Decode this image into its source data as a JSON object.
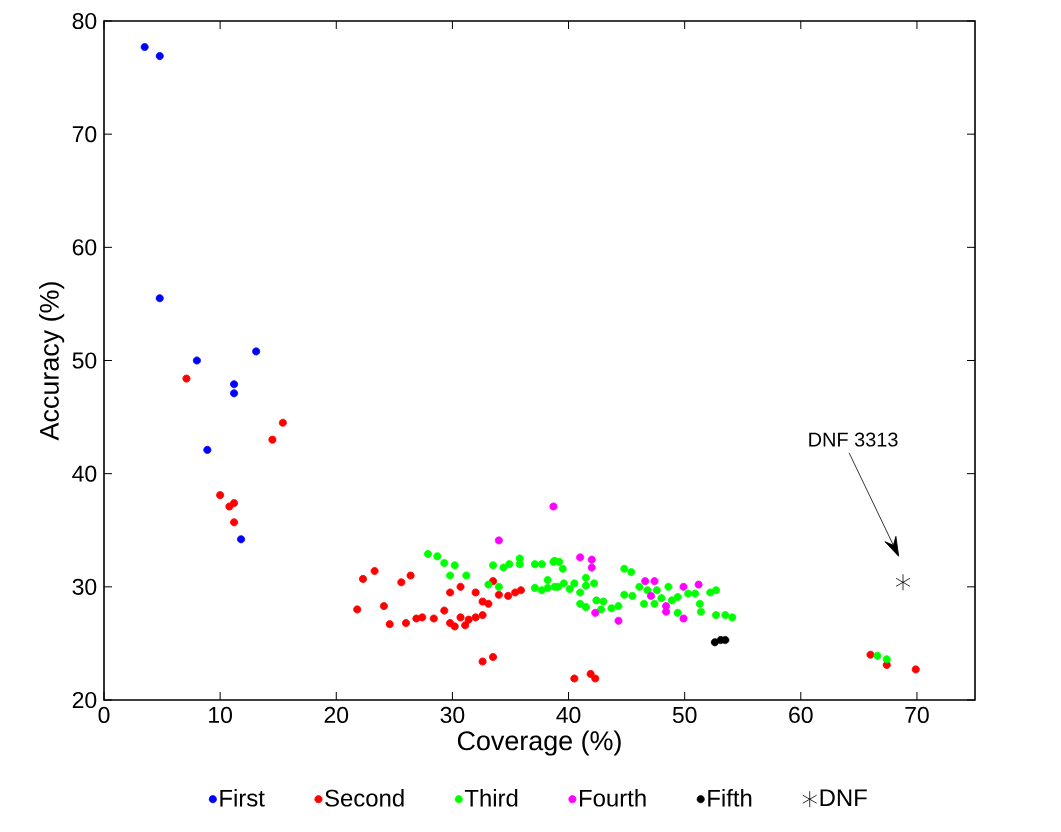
{
  "chart_data": {
    "type": "scatter",
    "xlabel": "Coverage (%)",
    "ylabel": "Accuracy (%)",
    "xlim": [
      0,
      75
    ],
    "ylim": [
      20,
      80
    ],
    "xticks": [
      0,
      10,
      20,
      30,
      40,
      50,
      60,
      70
    ],
    "yticks": [
      20,
      30,
      40,
      50,
      60,
      70,
      80
    ],
    "grid": false,
    "legend": "bottom",
    "marker": "circle",
    "annotations": [
      "DNF 3313"
    ],
    "series": [
      {
        "name": "First",
        "color": "#0000ff",
        "x": [
          3.5,
          4.8,
          4.8,
          8.0,
          13.1,
          11.2,
          11.2,
          8.9,
          11.8
        ],
        "values": [
          77.7,
          76.9,
          55.5,
          50.0,
          50.8,
          47.9,
          47.1,
          42.1,
          34.2
        ]
      },
      {
        "name": "Second",
        "color": "#ff0000",
        "x": [
          7.1,
          14.5,
          15.4,
          10.0,
          10.8,
          11.2,
          11.2,
          22.3,
          23.3,
          21.8,
          24.1,
          24.6,
          25.6,
          26.4,
          26.0,
          26.9,
          27.4,
          28.4,
          29.3,
          29.8,
          30.7,
          29.8,
          30.2,
          30.7,
          31.1,
          31.4,
          32.0,
          32.6,
          32.0,
          32.6,
          33.1,
          33.5,
          34.0,
          34.8,
          35.4,
          35.9,
          32.6,
          33.5,
          40.5,
          41.9,
          42.3,
          66.0,
          67.4,
          69.9
        ],
        "values": [
          48.4,
          43.0,
          44.5,
          38.1,
          37.1,
          37.4,
          35.7,
          30.7,
          31.4,
          28.0,
          28.3,
          26.7,
          30.4,
          31.0,
          26.8,
          27.2,
          27.3,
          27.2,
          27.9,
          29.5,
          30.0,
          26.8,
          26.5,
          27.3,
          26.6,
          27.1,
          27.3,
          27.5,
          29.5,
          28.7,
          28.5,
          30.5,
          29.3,
          29.2,
          29.5,
          29.7,
          23.4,
          23.8,
          21.9,
          22.3,
          21.9,
          24.0,
          23.1,
          22.7
        ]
      },
      {
        "name": "Third",
        "color": "#00ff00",
        "x": [
          27.9,
          28.7,
          29.3,
          29.8,
          30.2,
          31.2,
          33.1,
          34.0,
          33.5,
          34.4,
          34.9,
          35.8,
          35.8,
          37.1,
          37.7,
          38.7,
          37.1,
          37.7,
          38.2,
          38.8,
          38.8,
          39.2,
          39.5,
          38.2,
          39.1,
          39.6,
          40.5,
          40.1,
          41.5,
          41.5,
          42.2,
          41.0,
          41.0,
          41.5,
          42.4,
          43.0,
          42.8,
          43.7,
          44.3,
          44.8,
          45.4,
          44.8,
          45.5,
          46.1,
          46.5,
          46.8,
          47.6,
          47.4,
          48.0,
          48.6,
          48.9,
          49.4,
          50.3,
          50.9,
          49.4,
          51.3,
          51.4,
          52.2,
          52.7,
          52.7,
          53.5,
          54.1,
          66.6,
          67.4
        ],
        "values": [
          32.9,
          32.7,
          32.1,
          31.0,
          31.9,
          31.0,
          30.2,
          30.0,
          31.9,
          31.7,
          32.0,
          32.5,
          32.0,
          32.0,
          32.0,
          32.2,
          29.9,
          29.7,
          30.6,
          30.0,
          32.3,
          32.2,
          31.6,
          29.9,
          30.0,
          30.3,
          30.3,
          29.8,
          30.8,
          30.1,
          30.3,
          29.5,
          28.5,
          28.2,
          28.8,
          28.7,
          28.0,
          28.1,
          28.3,
          31.6,
          31.3,
          29.3,
          29.2,
          30.0,
          28.5,
          29.7,
          29.7,
          28.5,
          29.0,
          30.0,
          28.8,
          29.1,
          29.4,
          29.4,
          27.7,
          28.5,
          27.8,
          29.5,
          29.7,
          27.5,
          27.5,
          27.3,
          23.9,
          23.6
        ]
      },
      {
        "name": "Fourth",
        "color": "#ff00ff",
        "x": [
          38.7,
          34.0,
          41.0,
          42.0,
          42.0,
          42.3,
          44.3,
          46.6,
          47.4,
          47.1,
          48.4,
          48.4,
          49.9,
          49.9,
          51.2
        ],
        "values": [
          37.1,
          34.1,
          32.6,
          32.4,
          31.7,
          27.7,
          27.0,
          30.5,
          30.5,
          29.2,
          28.3,
          27.8,
          30.0,
          27.2,
          30.2
        ]
      },
      {
        "name": "Fifth",
        "color": "#000000",
        "x": [
          52.6,
          53.1,
          53.5
        ],
        "values": [
          25.1,
          25.3,
          25.3
        ]
      },
      {
        "name": "DNF",
        "color": "#000000",
        "marker": "cross",
        "x": [
          68.8
        ],
        "values": [
          30.4
        ]
      }
    ]
  }
}
